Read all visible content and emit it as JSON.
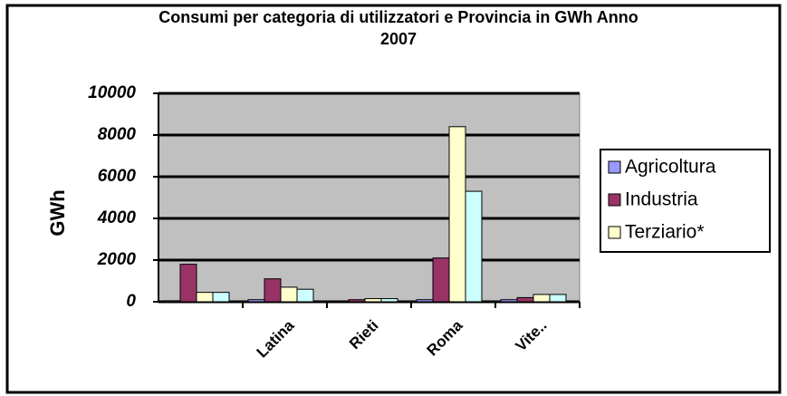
{
  "chart_data": {
    "type": "bar",
    "title": "Consumi per categoria di utilizzatori e Provincia in GWh Anno 2007",
    "y_label": "GWh",
    "categories": [
      null,
      "Latina",
      "Rieti",
      "Roma",
      "Vite.."
    ],
    "series": [
      {
        "name": "Agricoltura",
        "color": "#9999ff",
        "values": [
          50,
          100,
          30,
          100,
          100
        ]
      },
      {
        "name": "Industria",
        "color": "#993366",
        "values": [
          1800,
          1100,
          100,
          2100,
          200
        ]
      },
      {
        "name": "Terziario*",
        "color": "#ffffcc",
        "values": [
          450,
          700,
          150,
          8400,
          350
        ]
      },
      {
        "color": "#ccffff",
        "values": [
          450,
          600,
          150,
          5300,
          350
        ]
      }
    ],
    "ylim": [
      0,
      10000
    ],
    "yticks": [
      0,
      2000,
      4000,
      6000,
      8000,
      10000
    ],
    "grid": true
  }
}
